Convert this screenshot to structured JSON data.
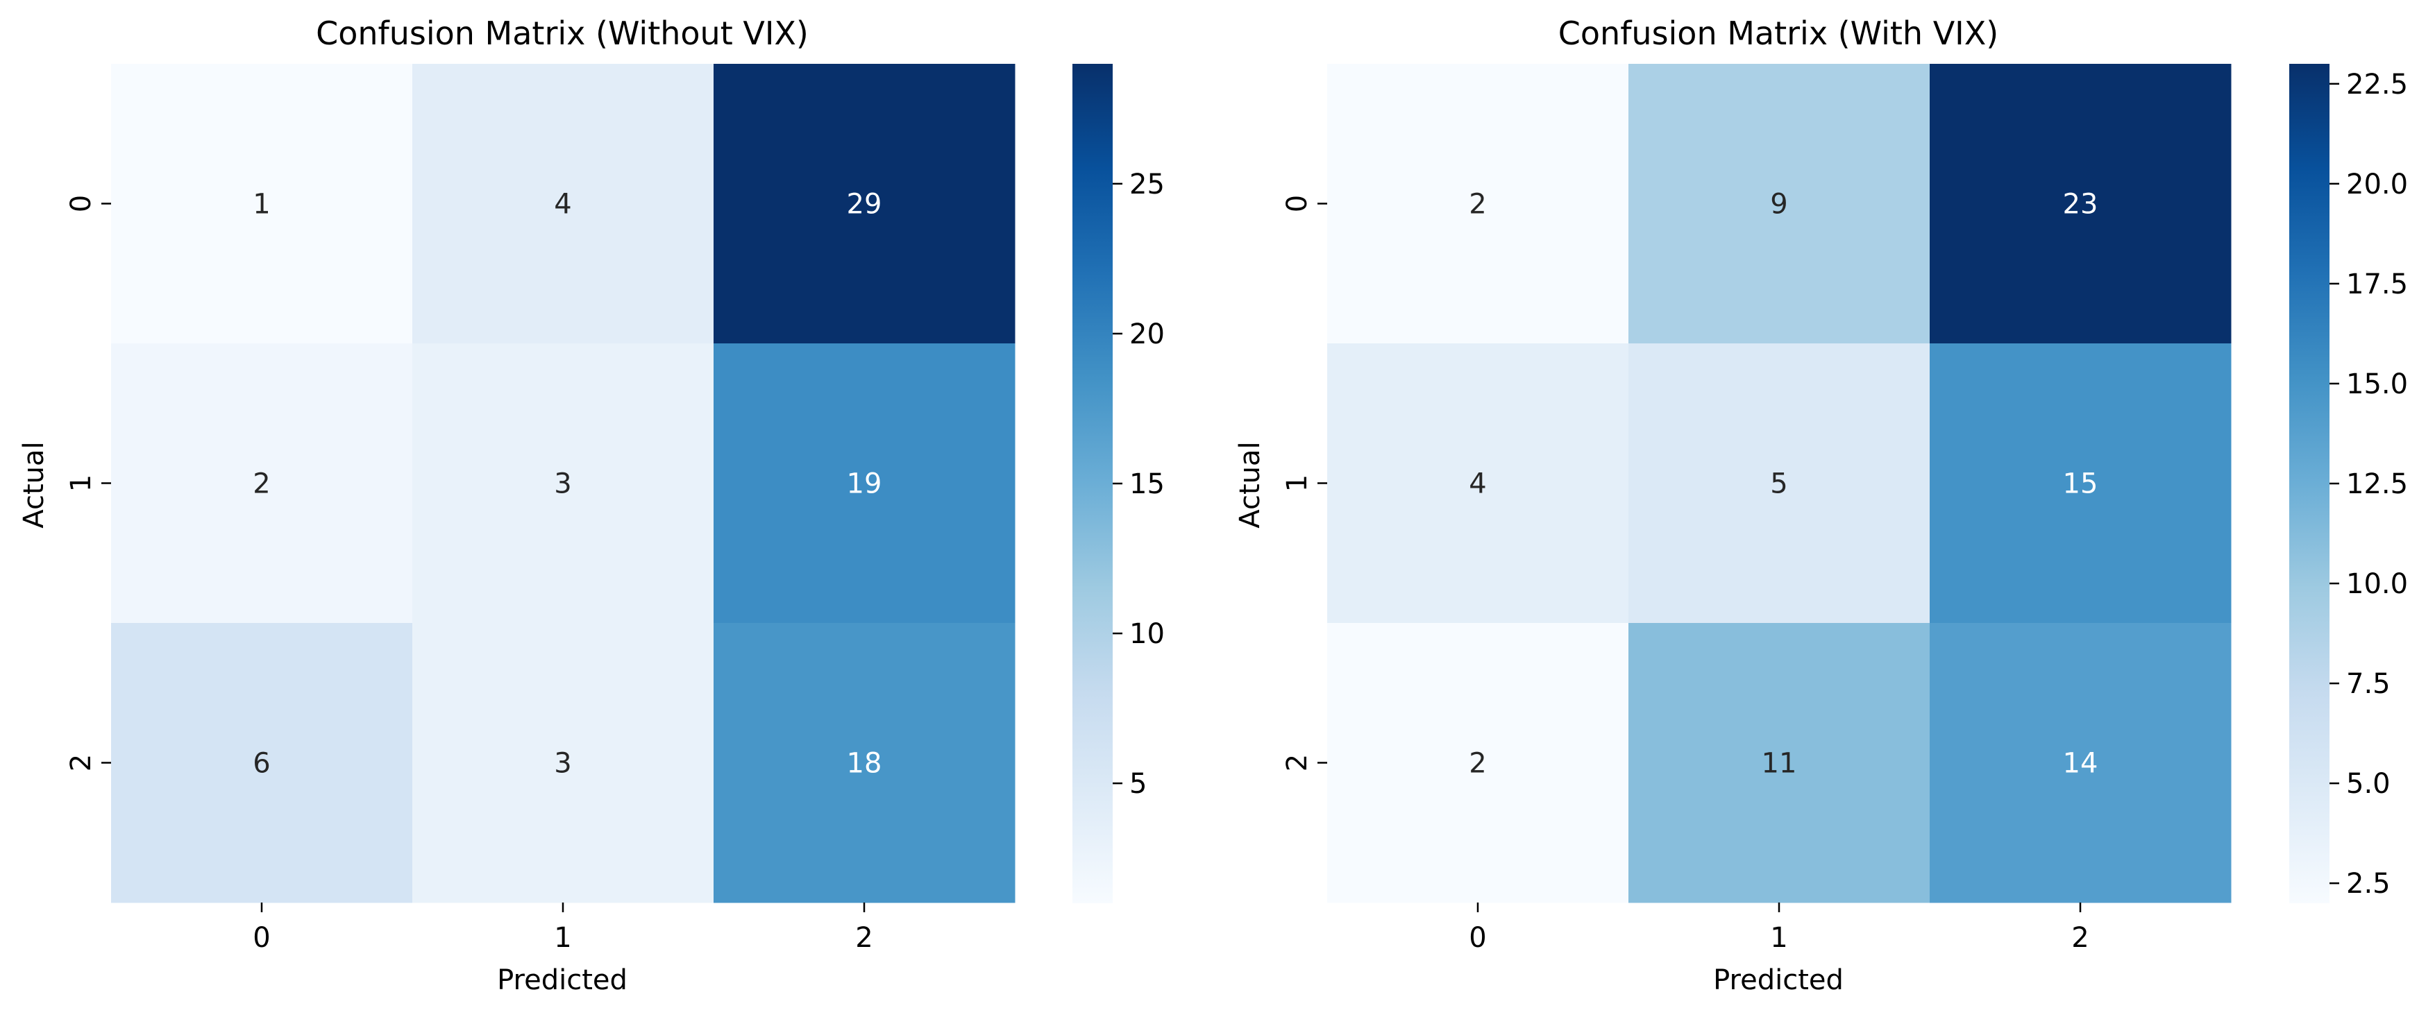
{
  "chart_data": [
    {
      "type": "heatmap",
      "title": "Confusion Matrix (Without VIX)",
      "xlabel": "Predicted",
      "ylabel": "Actual",
      "x_categories": [
        "0",
        "1",
        "2"
      ],
      "y_categories": [
        "0",
        "1",
        "2"
      ],
      "values": [
        [
          1,
          4,
          29
        ],
        [
          2,
          3,
          19
        ],
        [
          6,
          3,
          18
        ]
      ],
      "colormap": "Blues",
      "colorbar": {
        "min": 1,
        "max": 29,
        "ticks": [
          5,
          10,
          15,
          20,
          25
        ],
        "tick_labels": [
          "5",
          "10",
          "15",
          "20",
          "25"
        ]
      }
    },
    {
      "type": "heatmap",
      "title": "Confusion Matrix (With VIX)",
      "xlabel": "Predicted",
      "ylabel": "Actual",
      "x_categories": [
        "0",
        "1",
        "2"
      ],
      "y_categories": [
        "0",
        "1",
        "2"
      ],
      "values": [
        [
          2,
          9,
          23
        ],
        [
          4,
          5,
          15
        ],
        [
          2,
          11,
          14
        ]
      ],
      "colormap": "Blues",
      "colorbar": {
        "min": 2,
        "max": 23,
        "ticks": [
          2.5,
          5.0,
          7.5,
          10.0,
          12.5,
          15.0,
          17.5,
          20.0,
          22.5
        ],
        "tick_labels": [
          "2.5",
          "5.0",
          "7.5",
          "10.0",
          "12.5",
          "15.0",
          "17.5",
          "20.0",
          "22.5"
        ]
      }
    }
  ],
  "colors": {
    "blues_ramp": [
      "#f7fbff",
      "#deebf7",
      "#c6dbef",
      "#9ecae1",
      "#6baed6",
      "#4292c6",
      "#2171b5",
      "#08519c",
      "#08306b"
    ],
    "text_dark": "#262626",
    "text_light": "#ffffff",
    "axis": "#000000"
  }
}
